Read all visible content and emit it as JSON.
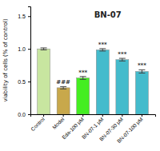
{
  "chart_data": {
    "type": "bar",
    "categories": [
      "Control",
      "Model",
      "Eda-100 μM",
      "BN-07-1 μM",
      "BN-07-30 μM",
      "BN-07-100 μM"
    ],
    "values": [
      1.0,
      0.405,
      0.555,
      0.985,
      0.835,
      0.655
    ],
    "errors": [
      0.015,
      0.018,
      0.022,
      0.018,
      0.02,
      0.025
    ],
    "colors": [
      "#c8e6a0",
      "#c8a84b",
      "#44ee22",
      "#44bbcc",
      "#44bbcc",
      "#44bbcc"
    ],
    "y_label": "viability of cells (% of control)",
    "ylim": [
      0.0,
      1.65
    ],
    "yticks": [
      {
        "value": 0.0,
        "label": "0.0"
      },
      {
        "value": 0.5,
        "label": "0.5"
      },
      {
        "value": 1.0,
        "label": "1.0"
      },
      {
        "value": 1.5,
        "label": "1.5"
      }
    ],
    "annotations": [
      {
        "text": "###",
        "category": "Model"
      },
      {
        "text": "***",
        "category": "Eda-100 μM"
      },
      {
        "text": "***",
        "category": "BN-07-1 μM"
      },
      {
        "text": "***",
        "category": "BN-07-30 μM"
      },
      {
        "text": "***",
        "category": "BN-07-100 μM"
      },
      {
        "text": "BN-07"
      }
    ]
  }
}
